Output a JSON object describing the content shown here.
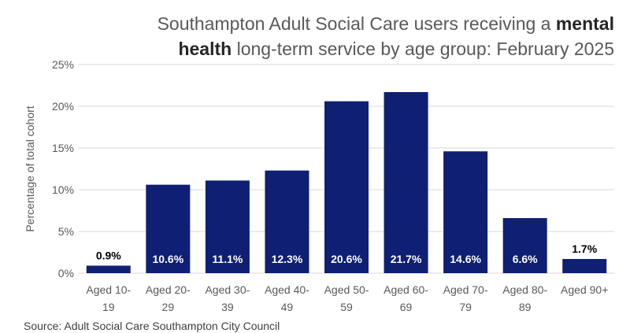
{
  "chart_data": {
    "type": "bar",
    "title_parts": [
      {
        "text": "Southampton Adult Social Care users receiving a ",
        "bold": false
      },
      {
        "text": "mental",
        "bold": true
      },
      {
        "text": " ",
        "bold": false
      },
      {
        "text": "health",
        "bold": true
      },
      {
        "text": " long-term service by age group: February 2025",
        "bold": false
      }
    ],
    "ylabel": "Percentage of total cohort",
    "xlabel": "",
    "ylim": [
      0,
      25
    ],
    "yticks": [
      0,
      5,
      10,
      15,
      20,
      25
    ],
    "ytick_labels": [
      "0%",
      "5%",
      "10%",
      "15%",
      "20%",
      "25%"
    ],
    "grid": true,
    "categories": [
      [
        "Aged 10-",
        "19"
      ],
      [
        "Aged 20-",
        "29"
      ],
      [
        "Aged 30-",
        "39"
      ],
      [
        "Aged 40-",
        "49"
      ],
      [
        "Aged 50-",
        "59"
      ],
      [
        "Aged 60-",
        "69"
      ],
      [
        "Aged 70-",
        "79"
      ],
      [
        "Aged 80-",
        "89"
      ],
      [
        "Aged 90+"
      ]
    ],
    "values": [
      0.9,
      10.6,
      11.1,
      12.3,
      20.6,
      21.7,
      14.6,
      6.6,
      1.7
    ],
    "data_labels": [
      "0.9%",
      "10.6%",
      "11.1%",
      "12.3%",
      "20.6%",
      "21.7%",
      "14.6%",
      "6.6%",
      "1.7%"
    ],
    "bar_color": "#0f1f73",
    "grid_color": "#d9d9d9",
    "axis_text_color": "#595959"
  },
  "source": "Source: Adult Social Care Southampton City Council"
}
